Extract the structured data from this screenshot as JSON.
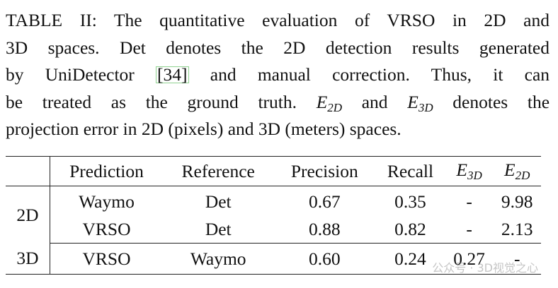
{
  "caption": {
    "line1": "TABLE II: The quantitative evaluation of VRSO in 2D and",
    "line2": "3D spaces. Det denotes the 2D detection results generated",
    "line3_pre": "by UniDetector",
    "line3_cite": "[34]",
    "line3_post": "and manual correction. Thus, it can",
    "line4_pre": "be treated as the ground truth.",
    "e2d_base": "E",
    "e2d_sub": "2D",
    "line4_and": "and",
    "e3d_base": "E",
    "e3d_sub": "3D",
    "line4_post": "denotes the",
    "line5": "projection error in 2D (pixels) and 3D (meters) spaces."
  },
  "table": {
    "headers": {
      "prediction": "Prediction",
      "reference": "Reference",
      "precision": "Precision",
      "recall": "Recall",
      "e3d_base": "E",
      "e3d_sub": "3D",
      "e2d_base": "E",
      "e2d_sub": "2D"
    },
    "group_2d": "2D",
    "group_3d": "3D",
    "rows": [
      {
        "prediction": "Waymo",
        "reference": "Det",
        "precision": "0.67",
        "recall": "0.35",
        "e3d": "-",
        "e2d": "9.98"
      },
      {
        "prediction": "VRSO",
        "reference": "Det",
        "precision": "0.88",
        "recall": "0.82",
        "e3d": "-",
        "e2d": "2.13"
      },
      {
        "prediction": "VRSO",
        "reference": "Waymo",
        "precision": "0.60",
        "recall": "0.24",
        "e3d": "0.27",
        "e2d": "-"
      }
    ]
  },
  "watermark": "公众号 · 3D视觉之心"
}
